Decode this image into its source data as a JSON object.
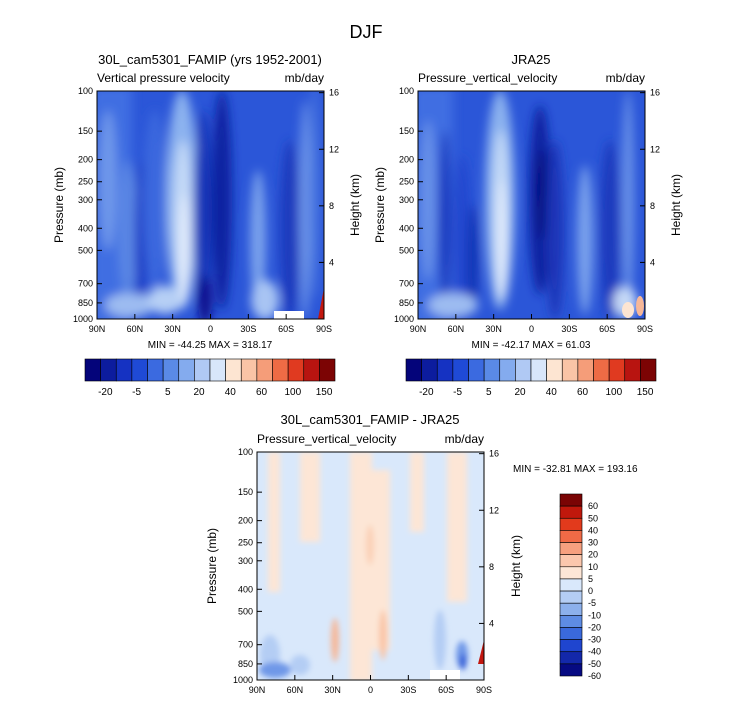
{
  "page_title": "DJF",
  "chart_data": [
    {
      "type": "heatmap",
      "title": "30L_cam5301_FAMIP (yrs 1952-2001)",
      "subtitle_left": "Vertical pressure velocity",
      "subtitle_right": "mb/day",
      "ylabel": "Pressure (mb)",
      "ylabel_right": "Height (km)",
      "x_ticks": [
        "90N",
        "60N",
        "30N",
        "0",
        "30S",
        "60S",
        "90S"
      ],
      "y_ticks": [
        "100",
        "150",
        "200",
        "250",
        "300",
        "400",
        "500",
        "700",
        "850",
        "1000"
      ],
      "y_ticks_right": [
        "16",
        "12",
        "8",
        "4"
      ],
      "ylim": [
        100,
        1000
      ],
      "xlim": [
        "90N",
        "90S"
      ],
      "stats": "MIN = -44.25  MAX = 318.17",
      "colorbar_labels": [
        "-20",
        "-5",
        "5",
        "20",
        "40",
        "60",
        "100",
        "150"
      ]
    },
    {
      "type": "heatmap",
      "title": "JRA25",
      "subtitle_left": "Pressure_vertical_velocity",
      "subtitle_right": "mb/day",
      "ylabel": "Pressure (mb)",
      "ylabel_right": "Height (km)",
      "x_ticks": [
        "90N",
        "60N",
        "30N",
        "0",
        "30S",
        "60S",
        "90S"
      ],
      "y_ticks": [
        "100",
        "150",
        "200",
        "250",
        "300",
        "400",
        "500",
        "700",
        "850",
        "1000"
      ],
      "y_ticks_right": [
        "16",
        "12",
        "8",
        "4"
      ],
      "ylim": [
        100,
        1000
      ],
      "xlim": [
        "90N",
        "90S"
      ],
      "stats": "MIN = -42.17  MAX =  61.03",
      "colorbar_labels": [
        "-20",
        "-5",
        "5",
        "20",
        "40",
        "60",
        "100",
        "150"
      ]
    },
    {
      "type": "heatmap",
      "title": "30L_cam5301_FAMIP - JRA25",
      "subtitle_left": "Pressure_vertical_velocity",
      "subtitle_right": "mb/day",
      "ylabel": "Pressure (mb)",
      "ylabel_right": "Height (km)",
      "x_ticks": [
        "90N",
        "60N",
        "30N",
        "0",
        "30S",
        "60S",
        "90S"
      ],
      "y_ticks": [
        "100",
        "150",
        "200",
        "250",
        "300",
        "400",
        "500",
        "700",
        "850",
        "1000"
      ],
      "y_ticks_right": [
        "16",
        "12",
        "8",
        "4"
      ],
      "ylim": [
        100,
        1000
      ],
      "xlim": [
        "90N",
        "90S"
      ],
      "stats": "MIN = -32.81  MAX = 193.16",
      "colorbar_labels": [
        "60",
        "50",
        "40",
        "30",
        "20",
        "10",
        "5",
        "0",
        "-5",
        "-10",
        "-20",
        "-30",
        "-40",
        "-50",
        "-60"
      ]
    }
  ],
  "colors": {
    "mean_palette": [
      "#04047a",
      "#0c1c9e",
      "#1532c2",
      "#1f4ad6",
      "#3b6ae0",
      "#5a8ae6",
      "#84abee",
      "#b0c9f4",
      "#d8e6fa",
      "#fde5d2",
      "#f9c4a6",
      "#f59d79",
      "#ee6b45",
      "#e03a20",
      "#b81410",
      "#7c0404"
    ],
    "diff_palette": [
      "#7a0404",
      "#c0180c",
      "#e23a1c",
      "#f06a46",
      "#f7a07f",
      "#fbc7ad",
      "#fde6d6",
      "#d9e8fb",
      "#b4cdf4",
      "#8cb0ec",
      "#5e8ce4",
      "#3a69dc",
      "#1f45cf",
      "#1328aa",
      "#060a82"
    ]
  }
}
